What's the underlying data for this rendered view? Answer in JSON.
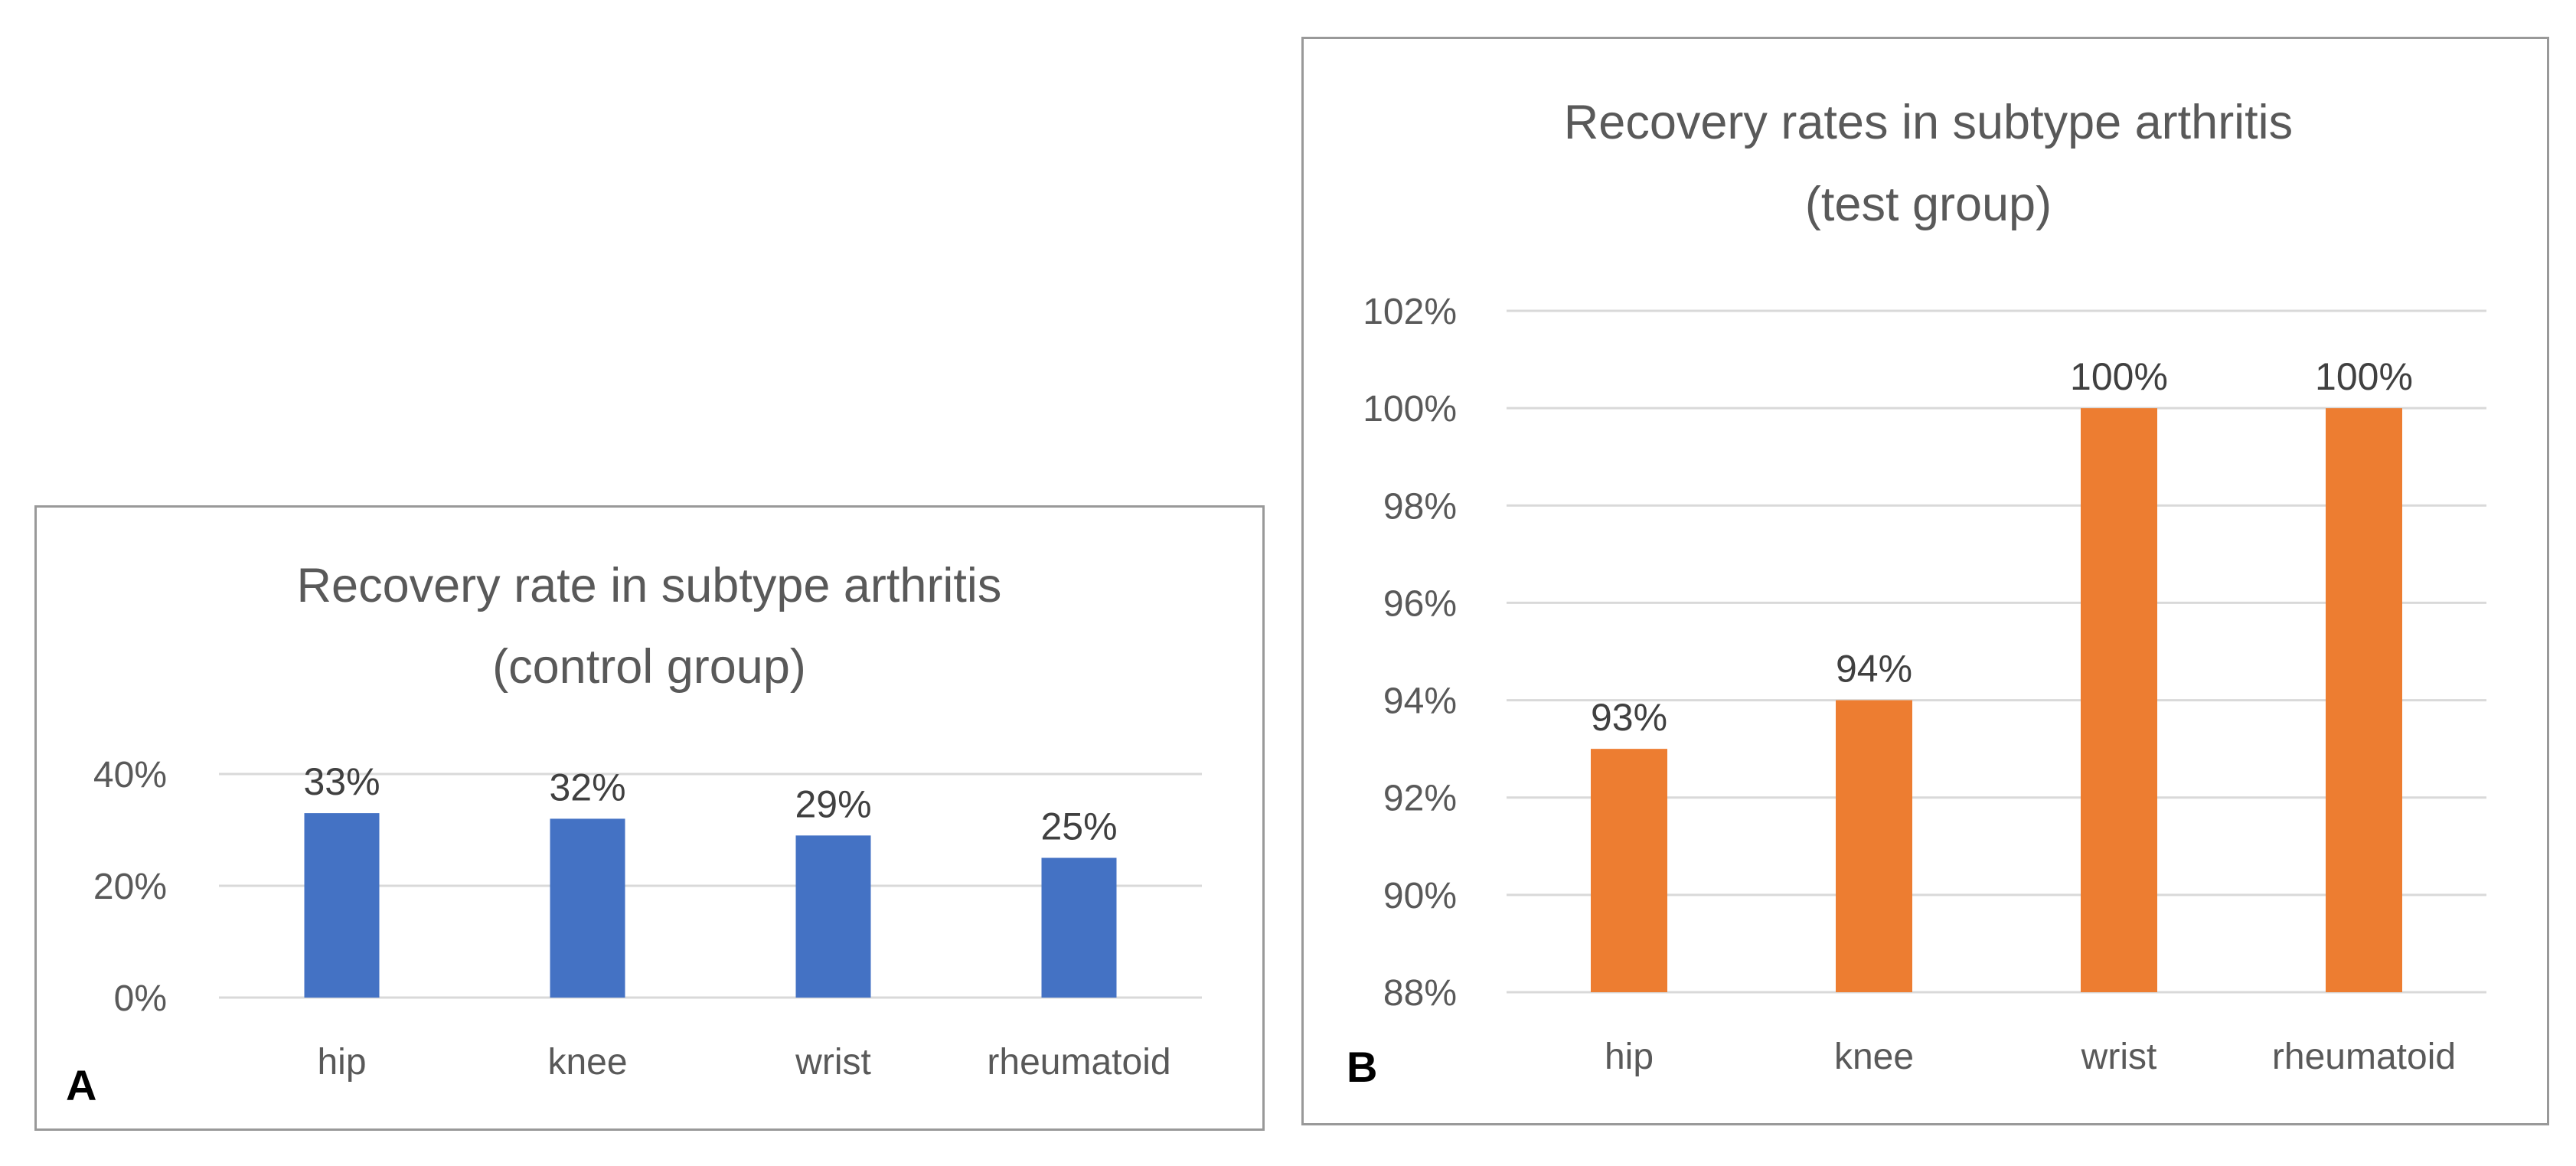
{
  "panels": [
    {
      "letter": "A"
    },
    {
      "letter": "B"
    }
  ],
  "chart_data": [
    {
      "type": "bar",
      "title": "Recovery rate in subtype arthritis (control group)",
      "title_lines": [
        "Recovery rate in subtype arthritis",
        "(control group)"
      ],
      "categories": [
        "hip",
        "knee",
        "wrist",
        "rheumatoid"
      ],
      "values": [
        33,
        32,
        29,
        25
      ],
      "data_labels": [
        "33%",
        "32%",
        "29%",
        "25%"
      ],
      "yticks": [
        0,
        20,
        40
      ],
      "ytick_labels": [
        "0%",
        "20%",
        "40%"
      ],
      "ylim": [
        0,
        40
      ],
      "grid": true,
      "legend": "none",
      "bar_color": "#4472C4"
    },
    {
      "type": "bar",
      "title": "Recovery rates in subtype arthritis (test group)",
      "title_lines": [
        "Recovery rates in subtype arthritis",
        "(test group)"
      ],
      "categories": [
        "hip",
        "knee",
        "wrist",
        "rheumatoid"
      ],
      "values": [
        93,
        94,
        100,
        100
      ],
      "data_labels": [
        "93%",
        "94%",
        "100%",
        "100%"
      ],
      "yticks": [
        88,
        90,
        92,
        94,
        96,
        98,
        100,
        102
      ],
      "ytick_labels": [
        "88%",
        "90%",
        "92%",
        "94%",
        "96%",
        "98%",
        "100%",
        "102%"
      ],
      "ylim": [
        88,
        102
      ],
      "grid": true,
      "legend": "none",
      "bar_color": "#ED7D31"
    }
  ]
}
